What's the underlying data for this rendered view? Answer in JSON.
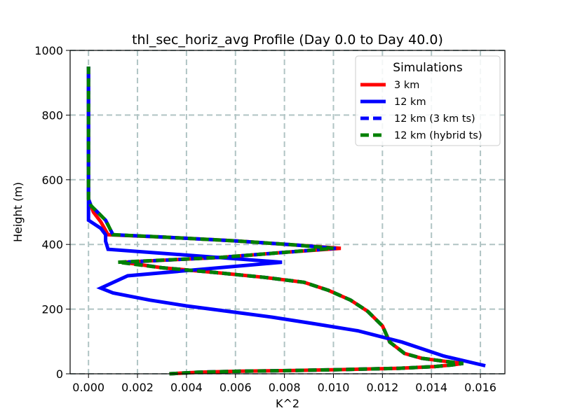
{
  "chart_data": {
    "type": "line",
    "title": "thl_sec_horiz_avg Profile (Day 0.0 to Day 40.0)",
    "xlabel": "K^2",
    "ylabel": "Height (m)",
    "xlim": [
      -0.00075,
      0.017
    ],
    "ylim": [
      0,
      1000
    ],
    "x_ticks": [
      0.0,
      0.002,
      0.004,
      0.006,
      0.008,
      0.01,
      0.012,
      0.014,
      0.016
    ],
    "x_tick_labels": [
      "0.000",
      "0.002",
      "0.004",
      "0.006",
      "0.008",
      "0.010",
      "0.012",
      "0.014",
      "0.016"
    ],
    "y_ticks": [
      0,
      200,
      400,
      600,
      800,
      1000
    ],
    "y_tick_labels": [
      "0",
      "200",
      "400",
      "600",
      "800",
      "1000"
    ],
    "grid": true,
    "legend": {
      "title": "Simulations",
      "placement": "top-right"
    },
    "series": [
      {
        "name": "3 km",
        "color": "#ff0000",
        "style": "solid",
        "x": [
          0.0033,
          0.0045,
          0.0062,
          0.0082,
          0.0103,
          0.0127,
          0.0141,
          0.0148,
          0.0153,
          0.0146,
          0.0136,
          0.0129,
          0.0123,
          0.012,
          0.0114,
          0.0107,
          0.0098,
          0.0088,
          0.0072,
          0.0052,
          0.003,
          0.0014,
          0.0054,
          0.0079,
          0.0103,
          0.0085,
          0.006,
          0.003,
          0.0008,
          0.0005,
          0.0002,
          0.0001,
          0.0,
          0.0,
          0.0
        ],
        "y": [
          0,
          5,
          8,
          10,
          13,
          17,
          22,
          27,
          32,
          38,
          48,
          63,
          98,
          148,
          193,
          228,
          258,
          283,
          298,
          313,
          328,
          345,
          360,
          375,
          388,
          398,
          411,
          423,
          430,
          470,
          500,
          520,
          540,
          700,
          950
        ]
      },
      {
        "name": "12 km",
        "color": "#0000ff",
        "style": "solid",
        "x": [
          0.0162,
          0.0145,
          0.0128,
          0.011,
          0.0092,
          0.0075,
          0.0055,
          0.004,
          0.0025,
          0.001,
          0.0005,
          0.0016,
          0.0079,
          0.0008,
          0.0007,
          0.0007,
          0.0005,
          0.0002,
          0.0,
          0.0,
          0.0,
          0.0
        ],
        "y": [
          25,
          55,
          98,
          133,
          155,
          175,
          195,
          210,
          228,
          250,
          265,
          303,
          345,
          385,
          410,
          430,
          450,
          465,
          475,
          520,
          700,
          950
        ]
      },
      {
        "name": "12 km (3 km ts)",
        "color": "#0000ff",
        "style": "dashed",
        "x": [
          0.0033,
          0.0045,
          0.0062,
          0.0082,
          0.0103,
          0.0127,
          0.0141,
          0.0148,
          0.0153,
          0.0146,
          0.0136,
          0.0129,
          0.0123,
          0.012,
          0.0114,
          0.0107,
          0.0098,
          0.0088,
          0.0072,
          0.0052,
          0.003,
          0.0014,
          0.0054,
          0.0079,
          0.0101,
          0.0085,
          0.006,
          0.003,
          0.001,
          0.0007,
          0.0003,
          0.0001,
          0.0,
          0.0,
          0.0
        ],
        "y": [
          0,
          5,
          8,
          10,
          13,
          17,
          22,
          27,
          32,
          38,
          48,
          63,
          98,
          148,
          193,
          228,
          258,
          283,
          298,
          313,
          328,
          345,
          360,
          375,
          388,
          398,
          411,
          423,
          430,
          475,
          505,
          520,
          540,
          700,
          950
        ]
      },
      {
        "name": "12 km (hybrid ts)",
        "color": "#008000",
        "style": "dashed",
        "x": [
          0.0033,
          0.0045,
          0.0062,
          0.0082,
          0.0103,
          0.0127,
          0.0141,
          0.0148,
          0.0153,
          0.0146,
          0.0136,
          0.0129,
          0.0123,
          0.012,
          0.0114,
          0.0107,
          0.0098,
          0.0088,
          0.0072,
          0.0052,
          0.003,
          0.0012,
          0.0054,
          0.0079,
          0.01,
          0.0085,
          0.006,
          0.003,
          0.001,
          0.0007,
          0.0003,
          0.0001,
          0.0,
          0.0,
          0.0
        ],
        "y": [
          0,
          5,
          8,
          10,
          13,
          17,
          22,
          27,
          32,
          38,
          48,
          63,
          98,
          148,
          193,
          228,
          258,
          283,
          298,
          313,
          328,
          345,
          360,
          375,
          388,
          398,
          411,
          423,
          430,
          475,
          505,
          520,
          540,
          700,
          950
        ]
      }
    ]
  }
}
